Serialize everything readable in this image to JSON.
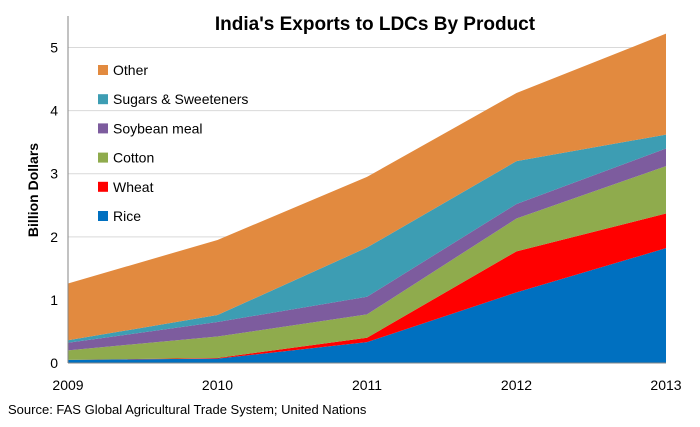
{
  "chart_data": {
    "type": "area",
    "stacked": true,
    "title": "India's Exports to LDCs By Product",
    "xlabel": "",
    "ylabel": "Billion Dollars",
    "x": [
      "2009",
      "2010",
      "2011",
      "2012",
      "2013"
    ],
    "ylim": [
      0,
      5.5
    ],
    "yticks": [
      "0",
      "1",
      "2",
      "3",
      "4",
      "5"
    ],
    "grid": "horizontal",
    "legend_position": "top-left",
    "series": [
      {
        "name": "Rice",
        "color": "#0070C0",
        "values": [
          0.05,
          0.07,
          0.33,
          1.12,
          1.82
        ]
      },
      {
        "name": "Wheat",
        "color": "#FF0000",
        "values": [
          0.0,
          0.01,
          0.07,
          0.65,
          0.55
        ]
      },
      {
        "name": "Cotton",
        "color": "#8FAB4D",
        "values": [
          0.15,
          0.34,
          0.37,
          0.52,
          0.75
        ]
      },
      {
        "name": "Soybean meal",
        "color": "#7D5C9E",
        "values": [
          0.12,
          0.23,
          0.28,
          0.23,
          0.28
        ]
      },
      {
        "name": "Sugars & Sweeteners",
        "color": "#3D9DB3",
        "values": [
          0.04,
          0.11,
          0.78,
          0.68,
          0.22
        ]
      },
      {
        "name": "Other",
        "color": "#E28A3F",
        "values": [
          0.9,
          1.19,
          1.12,
          1.08,
          1.6
        ]
      }
    ],
    "legend_order": [
      "Other",
      "Sugars & Sweeteners",
      "Soybean meal",
      "Cotton",
      "Wheat",
      "Rice"
    ]
  },
  "source": "Source: FAS Global Agricultural Trade System; United Nations"
}
